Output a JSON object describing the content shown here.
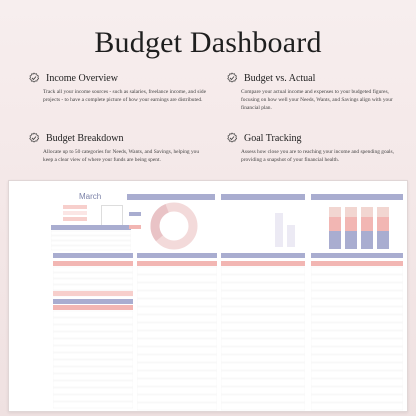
{
  "title": "Budget Dashboard",
  "features": [
    {
      "heading": "Income Overview",
      "icon": "check-badge-icon",
      "description": "Track all your income sources - such as salaries, freelance income, and side projects - to have a complete picture of how your earnings are distributed."
    },
    {
      "heading": "Budget vs. Actual",
      "icon": "check-badge-icon",
      "description": "Compare your actual income and expenses to your budgeted figures, focusing on how well your Needs, Wants, and Savings align with your financial plan."
    },
    {
      "heading": "Budget Breakdown",
      "icon": "check-badge-icon",
      "description": "Allocate up to 50 categories for Needs, Wants, and Savings, helping you keep a clear view of where your funds are being spent."
    },
    {
      "heading": "Goal Tracking",
      "icon": "check-badge-icon",
      "description": "Assess how close you are to reaching your income and spending goals, providing a snapshot of your financial health."
    }
  ],
  "sheet": {
    "month": "March",
    "colors": {
      "header_blue": "#a9add0",
      "header_pink": "#f2b6b3",
      "row_pink": "#fbe6e5"
    }
  }
}
